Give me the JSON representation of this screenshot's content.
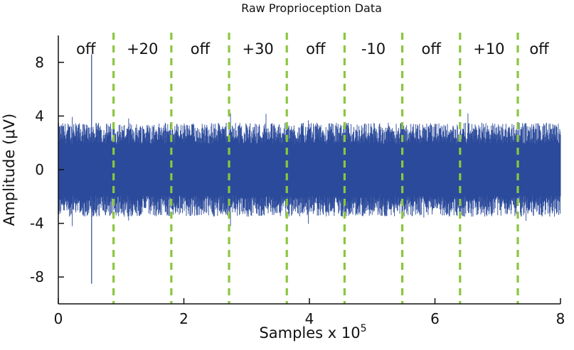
{
  "chart_data": {
    "type": "line",
    "title": "Raw Proprioception Data",
    "ylabel": "Amplitude (μV)",
    "xlabel_text": "Samples x 10",
    "xlabel_exponent": "5",
    "xlim": [
      0,
      8
    ],
    "ylim": [
      -10,
      10
    ],
    "x_ticks": [
      0,
      2,
      4,
      6,
      8
    ],
    "x_tick_labels": [
      "0",
      "2",
      "4",
      "6",
      "8"
    ],
    "y_ticks": [
      8,
      4,
      0,
      -4,
      -8
    ],
    "y_tick_labels": [
      "8",
      "4",
      "0",
      "-4",
      "-8"
    ],
    "series": [
      {
        "color": "#2b4a9b",
        "approx_envelope_uV": [
          -3.5,
          3.5
        ]
      }
    ],
    "markers": {
      "style": "dashed",
      "color": "#8cc63f",
      "x": [
        0.88,
        1.8,
        2.72,
        3.64,
        4.56,
        5.48,
        6.4,
        7.32
      ]
    },
    "segments": [
      {
        "label": "off",
        "x_start": 0.0,
        "x_end": 0.88
      },
      {
        "label": "+20",
        "x_start": 0.88,
        "x_end": 1.8
      },
      {
        "label": "off",
        "x_start": 1.8,
        "x_end": 2.72
      },
      {
        "label": "+30",
        "x_start": 2.72,
        "x_end": 3.64
      },
      {
        "label": "off",
        "x_start": 3.64,
        "x_end": 4.56
      },
      {
        "label": "-10",
        "x_start": 4.56,
        "x_end": 5.48
      },
      {
        "label": "off",
        "x_start": 5.48,
        "x_end": 6.4
      },
      {
        "label": "+10",
        "x_start": 6.4,
        "x_end": 7.32
      },
      {
        "label": "off",
        "x_start": 7.32,
        "x_end": 8.0
      }
    ],
    "annotations": [
      {
        "text": "spike",
        "x": 0.53,
        "y_max": 8.6,
        "y_min": -8.5
      }
    ],
    "grid": false,
    "legend": "none"
  }
}
